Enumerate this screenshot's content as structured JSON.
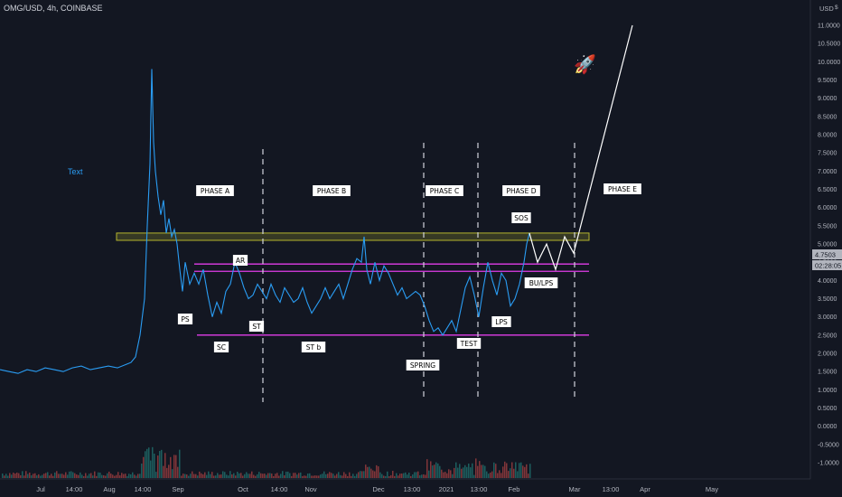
{
  "header": {
    "symbol": "OMG/USD, 4h, COINBASE"
  },
  "price_scale": {
    "currency": "USD",
    "currency_symbol": "$",
    "last_price": "4.7503",
    "countdown": "02:28:05"
  },
  "annotations": {
    "text": "Text",
    "phases": [
      "PHASE A",
      "PHASE B",
      "PHASE C",
      "PHASE D",
      "PHASE E"
    ],
    "events": [
      "PS",
      "SC",
      "AR",
      "ST",
      "ST b",
      "SPRING",
      "TEST",
      "LPS",
      "SOS",
      "BU/LPS"
    ],
    "rocket": "🚀"
  },
  "colors": {
    "background": "#131722",
    "price_line": "#2a9df4",
    "support_resistance": "#e03ce8",
    "resistance_box": "#b5b52e",
    "projection": "#ffffff",
    "label_bg": "#ffffff",
    "label_text": "#000000",
    "axis_text": "#b2b5be",
    "last_price_bg": "#b2b5be"
  },
  "chart_data": {
    "type": "line",
    "title": "OMG/USD, 4h, COINBASE",
    "xlabel": "",
    "ylabel": "",
    "ylim": [
      -1.2,
      11.5
    ],
    "x_tick_labels": [
      "Jul",
      "14:00",
      "Aug",
      "14:00",
      "Sep",
      "Oct",
      "14:00",
      "Nov",
      "Dec",
      "13:00",
      "2021",
      "13:00",
      "Feb",
      "Mar",
      "13:00",
      "Apr",
      "May"
    ],
    "y_tick_labels": [
      "11.0000",
      "10.5000",
      "10.0000",
      "9.5000",
      "9.0000",
      "8.5000",
      "8.0000",
      "7.5000",
      "7.0000",
      "6.5000",
      "6.0000",
      "5.5000",
      "5.0000",
      "4.5000",
      "4.0000",
      "3.5000",
      "3.0000",
      "2.5000",
      "2.0000",
      "1.5000",
      "1.0000",
      "0.5000",
      "0.0000",
      "-0.5000",
      "-1.0000"
    ],
    "series": [
      {
        "x": [
          0,
          10,
          20,
          30,
          40,
          50,
          60,
          70,
          80,
          90,
          100,
          110,
          120,
          130,
          140,
          145,
          150,
          155,
          160,
          163,
          166,
          168,
          170,
          172,
          175,
          178,
          181,
          184,
          187,
          190,
          193,
          196,
          199,
          202,
          205,
          210,
          215,
          220,
          225,
          230,
          235,
          240,
          245,
          250,
          255,
          260,
          265,
          270,
          275,
          280,
          285,
          290,
          295,
          300,
          305,
          310,
          315,
          320,
          325,
          330,
          335,
          340,
          345,
          350,
          355,
          360,
          365,
          370,
          375,
          380,
          385,
          390,
          395,
          400,
          403,
          406,
          410,
          415,
          420,
          425,
          430,
          435,
          440,
          445,
          450,
          455,
          460,
          465,
          470,
          475,
          480,
          485,
          490,
          495,
          500,
          505,
          510,
          515,
          520,
          525,
          530,
          535,
          540,
          545,
          550,
          555,
          560,
          565,
          570,
          575,
          580,
          583,
          586
        ],
        "y": [
          1.55,
          1.5,
          1.45,
          1.55,
          1.5,
          1.6,
          1.55,
          1.5,
          1.6,
          1.65,
          1.55,
          1.6,
          1.65,
          1.6,
          1.7,
          1.75,
          1.9,
          2.5,
          3.5,
          5.5,
          7.2,
          9.8,
          7.8,
          7.0,
          6.3,
          5.8,
          6.2,
          5.3,
          5.7,
          5.2,
          5.4,
          5.0,
          4.3,
          3.7,
          4.5,
          3.9,
          4.2,
          3.9,
          4.3,
          3.6,
          3.0,
          3.4,
          3.1,
          3.7,
          3.9,
          4.5,
          4.2,
          3.8,
          3.5,
          3.6,
          3.9,
          3.7,
          3.5,
          3.9,
          3.6,
          3.4,
          3.8,
          3.6,
          3.4,
          3.5,
          3.8,
          3.4,
          3.1,
          3.3,
          3.5,
          3.8,
          3.5,
          3.7,
          3.9,
          3.5,
          3.9,
          4.3,
          4.6,
          4.5,
          5.2,
          4.3,
          3.9,
          4.5,
          4.0,
          4.4,
          4.2,
          3.9,
          3.6,
          3.8,
          3.5,
          3.6,
          3.7,
          3.6,
          3.3,
          2.9,
          2.6,
          2.7,
          2.5,
          2.7,
          2.9,
          2.6,
          3.2,
          3.8,
          4.1,
          3.6,
          3.0,
          3.8,
          4.5,
          4.0,
          3.6,
          4.2,
          4.0,
          3.3,
          3.5,
          3.9,
          4.5,
          5.0,
          5.3
        ]
      }
    ],
    "projection": [
      [
        586,
        5.3
      ],
      [
        595,
        4.5
      ],
      [
        605,
        5.0
      ],
      [
        615,
        4.3
      ],
      [
        625,
        5.2
      ],
      [
        635,
        4.75
      ],
      [
        700,
        11.0
      ]
    ],
    "horizontal_levels": [
      4.45,
      4.25,
      2.5
    ],
    "resistance_zone": [
      5.1,
      5.3
    ],
    "volume_bars": true,
    "grid": false
  }
}
